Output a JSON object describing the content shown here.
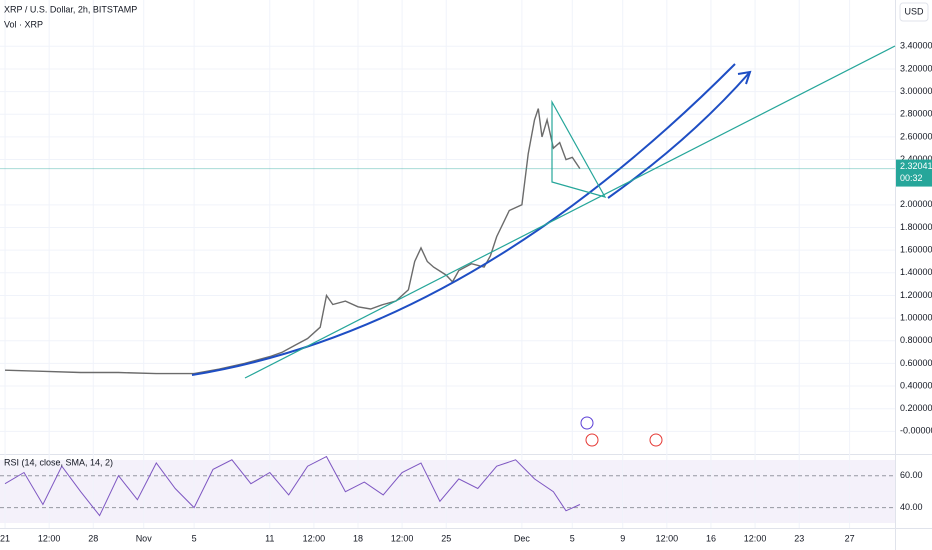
{
  "chart_data": [
    {
      "type": "line",
      "title": "XRP / U.S. Dollar, 2h, BITSTAMP",
      "subtitle": "Vol · XRP",
      "currency": "USD",
      "last_value": 2.32041,
      "countdown": "00:32",
      "color": "#6b6b6b",
      "xlim": [
        -0.4,
        70.6
      ],
      "ylim": [
        -0.2,
        3.8
      ],
      "xticks": [
        {
          "value": 0,
          "label": "21"
        },
        {
          "value": 3.5,
          "label": "12:00"
        },
        {
          "value": 7,
          "label": "28"
        },
        {
          "value": 11,
          "label": "Nov"
        },
        {
          "value": 15,
          "label": "5"
        },
        {
          "value": 21,
          "label": "11"
        },
        {
          "value": 24.5,
          "label": "12:00"
        },
        {
          "value": 28,
          "label": "18"
        },
        {
          "value": 31.5,
          "label": "12:00"
        },
        {
          "value": 35,
          "label": "25"
        },
        {
          "value": 41,
          "label": "Dec"
        },
        {
          "value": 45,
          "label": "5"
        },
        {
          "value": 49,
          "label": "9"
        },
        {
          "value": 52.5,
          "label": "12:00"
        },
        {
          "value": 56,
          "label": "16"
        },
        {
          "value": 59.5,
          "label": "12:00"
        },
        {
          "value": 63,
          "label": "23"
        },
        {
          "value": 67,
          "label": "27"
        }
      ],
      "yticks": [
        {
          "value": 3.4,
          "label": "3.40000"
        },
        {
          "value": 3.2,
          "label": "3.20000"
        },
        {
          "value": 3.0,
          "label": "3.00000"
        },
        {
          "value": 2.8,
          "label": "2.80000"
        },
        {
          "value": 2.6,
          "label": "2.60000"
        },
        {
          "value": 2.4,
          "label": "2.40000"
        },
        {
          "value": 2.0,
          "label": "2.00000"
        },
        {
          "value": 1.8,
          "label": "1.80000"
        },
        {
          "value": 1.6,
          "label": "1.60000"
        },
        {
          "value": 1.4,
          "label": "1.40000"
        },
        {
          "value": 1.2,
          "label": "1.20000"
        },
        {
          "value": 1.0,
          "label": "1.00000"
        },
        {
          "value": 0.8,
          "label": "0.80000"
        },
        {
          "value": 0.6,
          "label": "0.60000"
        },
        {
          "value": 0.4,
          "label": "0.40000"
        },
        {
          "value": 0.2,
          "label": "0.20000"
        },
        {
          "value": 0,
          "label": "-0.00000"
        }
      ],
      "x": [
        0,
        3,
        6,
        9,
        12,
        15,
        17,
        19,
        21,
        22,
        23,
        24,
        25,
        25.5,
        26,
        27,
        28,
        29,
        30,
        31,
        32,
        32.5,
        33,
        33.5,
        34,
        35,
        35.5,
        36,
        37,
        38,
        38.5,
        39,
        40,
        41,
        41.5,
        42,
        42.3,
        42.6,
        43,
        43.5,
        44,
        44.5,
        45,
        45.6
      ],
      "values": [
        0.54,
        0.53,
        0.52,
        0.52,
        0.51,
        0.51,
        0.55,
        0.6,
        0.66,
        0.7,
        0.76,
        0.82,
        0.92,
        1.2,
        1.12,
        1.15,
        1.1,
        1.08,
        1.12,
        1.15,
        1.25,
        1.5,
        1.62,
        1.5,
        1.45,
        1.38,
        1.32,
        1.42,
        1.48,
        1.45,
        1.55,
        1.72,
        1.95,
        2.0,
        2.45,
        2.75,
        2.85,
        2.6,
        2.75,
        2.5,
        2.55,
        2.4,
        2.42,
        2.32
      ]
    },
    {
      "type": "line",
      "title": "RSI (14, close, SMA, 14, 2)",
      "color": "#7e57c2",
      "xlim": [
        -0.4,
        70.6
      ],
      "ylim": [
        31,
        73
      ],
      "yticks": [
        {
          "value": 60,
          "label": "60.00"
        },
        {
          "value": 40,
          "label": "40.00"
        }
      ],
      "x": [
        0,
        1.5,
        3,
        4.5,
        6,
        7.5,
        9,
        10.5,
        12,
        13.5,
        15,
        16.5,
        18,
        19.5,
        21,
        22.5,
        24,
        25.5,
        27,
        28.5,
        30,
        31.5,
        33,
        34.5,
        36,
        37.5,
        39,
        40.5,
        42,
        43.5,
        44.5,
        45.6
      ],
      "values": [
        55,
        62,
        42,
        66,
        50,
        35,
        60,
        45,
        68,
        52,
        40,
        64,
        70,
        55,
        62,
        48,
        66,
        72,
        50,
        56,
        48,
        62,
        68,
        44,
        58,
        52,
        66,
        70,
        58,
        50,
        38,
        42
      ]
    }
  ]
}
